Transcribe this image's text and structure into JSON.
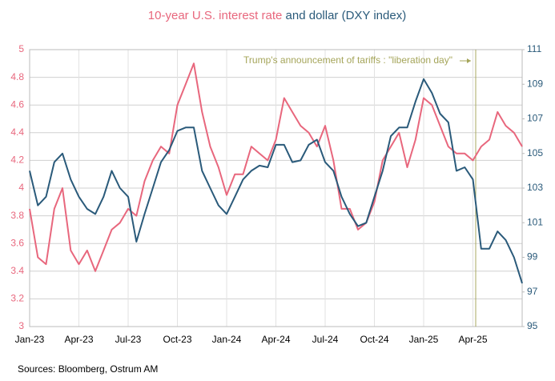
{
  "chart_data": {
    "type": "line",
    "categories": [
      "Jan-23",
      null,
      null,
      null,
      null,
      null,
      "Apr-23",
      null,
      null,
      null,
      null,
      null,
      "Jul-23",
      null,
      null,
      null,
      null,
      null,
      "Oct-23",
      null,
      null,
      null,
      null,
      null,
      "Jan-24",
      null,
      null,
      null,
      null,
      null,
      "Apr-24",
      null,
      null,
      null,
      null,
      null,
      "Jul-24",
      null,
      null,
      null,
      null,
      null,
      "Oct-24",
      null,
      null,
      null,
      null,
      null,
      "Jan-25",
      null,
      null,
      null,
      null,
      null,
      "Apr-25",
      null,
      null,
      null,
      null,
      null,
      null
    ],
    "series": [
      {
        "name": "10-year U.S. interest rate",
        "color": "#e8677d",
        "axis": "y",
        "values": [
          3.85,
          3.5,
          3.45,
          3.85,
          4.0,
          3.55,
          3.45,
          3.55,
          3.4,
          3.55,
          3.7,
          3.75,
          3.85,
          3.8,
          4.05,
          4.2,
          4.3,
          4.25,
          4.6,
          4.75,
          4.9,
          4.55,
          4.3,
          4.15,
          3.95,
          4.1,
          4.1,
          4.3,
          4.25,
          4.2,
          4.35,
          4.65,
          4.55,
          4.45,
          4.4,
          4.3,
          4.45,
          4.2,
          3.85,
          3.85,
          3.7,
          3.75,
          3.9,
          4.2,
          4.3,
          4.4,
          4.15,
          4.35,
          4.65,
          4.6,
          4.45,
          4.3,
          4.25,
          4.25,
          4.2,
          4.3,
          4.35,
          4.55,
          4.45,
          4.4,
          4.3
        ]
      },
      {
        "name": "and dollar (DXY index)",
        "color": "#2a5a7a",
        "axis": "y2",
        "values": [
          104,
          102,
          102.5,
          104.5,
          105,
          103.5,
          102.5,
          101.8,
          101.5,
          102.5,
          104,
          103,
          102.5,
          99.9,
          101.5,
          103,
          104.5,
          105.2,
          106.3,
          106.5,
          106.5,
          104,
          103,
          102,
          101.5,
          102.5,
          103.5,
          104,
          104.3,
          104.2,
          105.5,
          105.5,
          104.5,
          104.6,
          105.5,
          105.8,
          104.5,
          104,
          102.5,
          101.5,
          100.8,
          101,
          102.5,
          104,
          106,
          106.5,
          106.5,
          108,
          109.3,
          108.5,
          107.3,
          106.8,
          104,
          104.2,
          103.5,
          99.5,
          99.5,
          100.5,
          100,
          99,
          97.5
        ]
      }
    ],
    "ylim": [
      3,
      5
    ],
    "yticks": [
      3,
      3.2,
      3.4,
      3.6,
      3.8,
      4,
      4.2,
      4.4,
      4.6,
      4.8,
      5
    ],
    "y2lim": [
      95,
      111
    ],
    "y2ticks": [
      95,
      97,
      99,
      101,
      103,
      105,
      107,
      109,
      111
    ],
    "grid": true,
    "annotation": "Trump's announcement of tariffs : \"liberation day\"",
    "source": "Sources: Bloomberg, Ostrum AM"
  }
}
